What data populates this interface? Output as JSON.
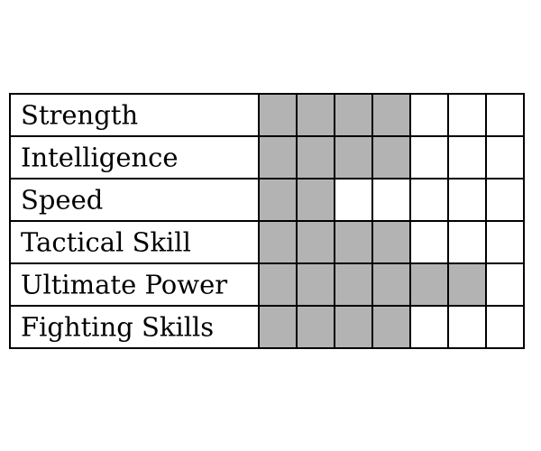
{
  "chart_data": {
    "type": "table",
    "max_value": 7,
    "rows": [
      {
        "label": "Strength",
        "value": 4
      },
      {
        "label": "Intelligence",
        "value": 4
      },
      {
        "label": "Speed",
        "value": 2
      },
      {
        "label": "Tactical Skill",
        "value": 4
      },
      {
        "label": "Ultimate Power",
        "value": 6
      },
      {
        "label": "Fighting Skills",
        "value": 4
      }
    ],
    "colors": {
      "filled": "#b3b3b3",
      "empty": "#ffffff",
      "line": "#000000"
    }
  }
}
